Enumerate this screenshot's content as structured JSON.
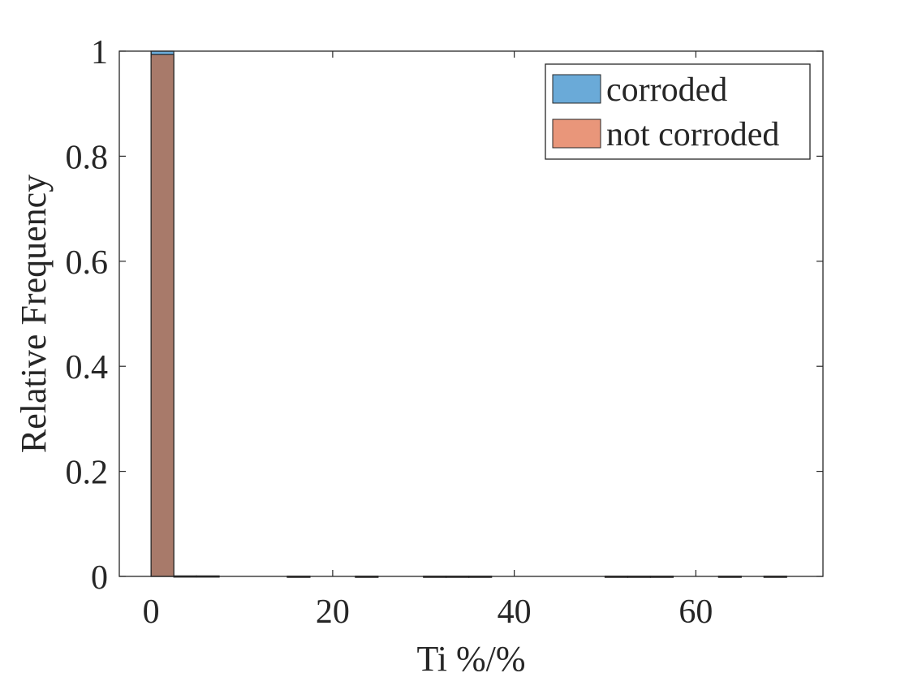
{
  "chart_data": {
    "type": "bar",
    "subtype": "overlaid-histogram",
    "title": "",
    "xlabel": "Ti %/%",
    "ylabel": "Relative Frequency",
    "xlim": [
      -3.5,
      74
    ],
    "ylim": [
      0,
      1
    ],
    "bin_width": 2.5,
    "xticks": [
      0,
      20,
      40,
      60
    ],
    "yticks": [
      0,
      0.2,
      0.4,
      0.6,
      0.8,
      1
    ],
    "ytick_labels": [
      "0",
      "0.2",
      "0.4",
      "0.6",
      "0.8",
      "1"
    ],
    "grid": false,
    "legend_position": "top-right",
    "colors": {
      "corroded": "#6aaad8",
      "not corroded": "#e9967a",
      "overlap": "#a87a6a",
      "axes": "#262626"
    },
    "series": [
      {
        "name": "corroded",
        "bins": [
          {
            "x0": 0,
            "x1": 2.5,
            "value": 1.0
          }
        ]
      },
      {
        "name": "not corroded",
        "bins": [
          {
            "x0": 0,
            "x1": 2.5,
            "value": 0.9935
          },
          {
            "x0": 2.5,
            "x1": 5,
            "value": 0.001
          },
          {
            "x0": 5,
            "x1": 7.5,
            "value": 0.001
          },
          {
            "x0": 15,
            "x1": 17.5,
            "value": 0.0005
          },
          {
            "x0": 22.5,
            "x1": 25,
            "value": 0.0005
          },
          {
            "x0": 30,
            "x1": 32.5,
            "value": 0.0005
          },
          {
            "x0": 32.5,
            "x1": 35,
            "value": 0.0005
          },
          {
            "x0": 35,
            "x1": 37.5,
            "value": 0.0005
          },
          {
            "x0": 50,
            "x1": 52.5,
            "value": 0.0005
          },
          {
            "x0": 52.5,
            "x1": 55,
            "value": 0.0005
          },
          {
            "x0": 55,
            "x1": 57.5,
            "value": 0.0005
          },
          {
            "x0": 62.5,
            "x1": 65,
            "value": 0.0005
          },
          {
            "x0": 67.5,
            "x1": 70,
            "value": 0.0005
          }
        ]
      }
    ]
  }
}
